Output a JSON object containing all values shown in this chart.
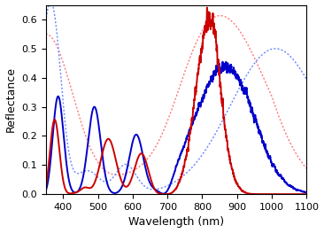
{
  "title": "",
  "xlabel": "Wavelength (nm)",
  "ylabel": "Reflectance",
  "xlim": [
    350,
    1100
  ],
  "ylim": [
    0,
    0.65
  ],
  "yticks": [
    0,
    0.1,
    0.2,
    0.3,
    0.4,
    0.5,
    0.6
  ],
  "xticks": [
    400,
    500,
    600,
    700,
    800,
    900,
    1000,
    1100
  ],
  "blue_solid_color": "#0000cc",
  "red_solid_color": "#cc0000",
  "blue_dashed_color": "#6688ff",
  "red_dashed_color": "#ff7777",
  "linewidth_solid": 1.4,
  "linewidth_dashed": 1.0,
  "background_color": "#ffffff"
}
